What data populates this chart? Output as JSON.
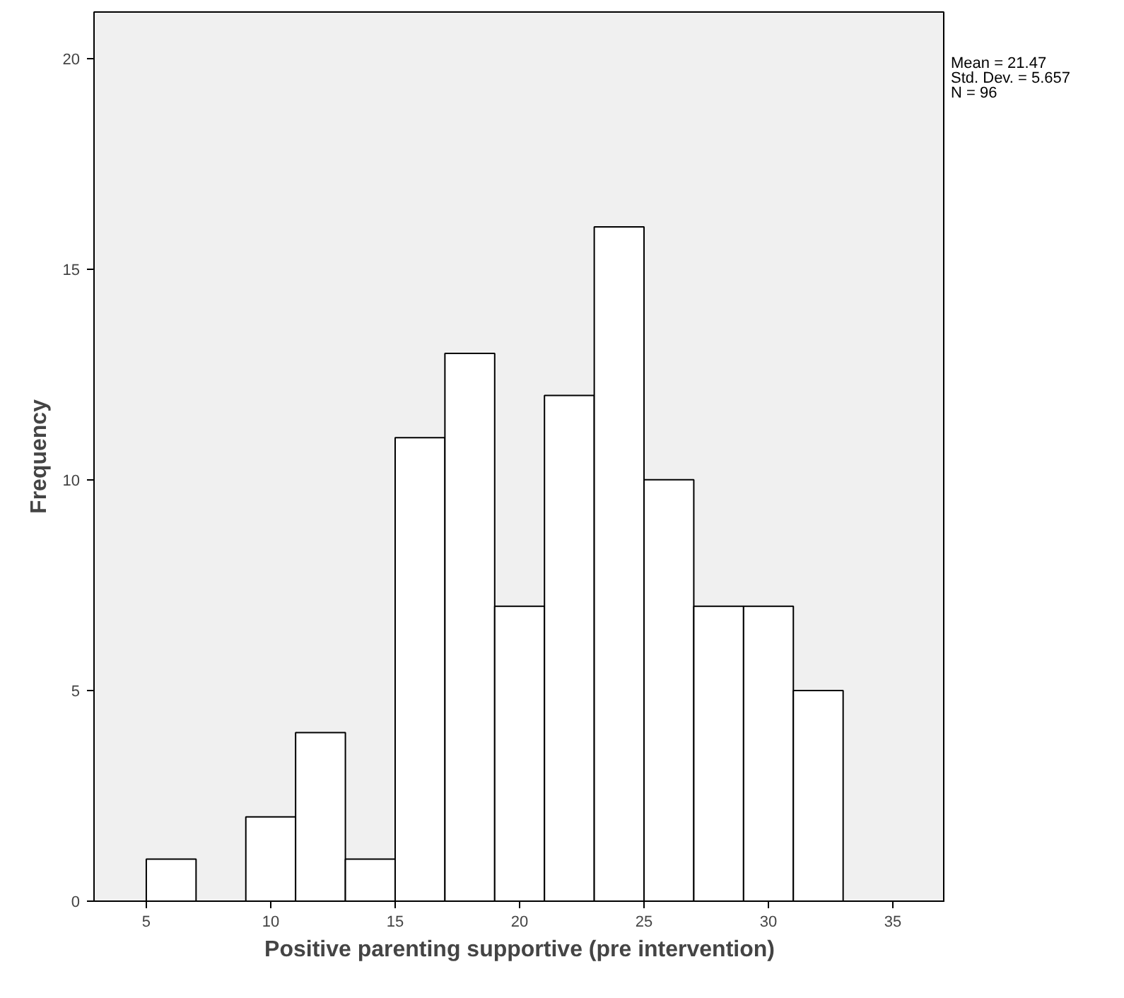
{
  "chart_data": {
    "type": "histogram",
    "xlabel": "Positive parenting supportive (pre intervention)",
    "ylabel": "Frequency",
    "bins": [
      5,
      7,
      9,
      11,
      13,
      15,
      17,
      19,
      21,
      23,
      25,
      27,
      29,
      31,
      33
    ],
    "values": [
      1,
      0,
      2,
      4,
      1,
      11,
      13,
      7,
      12,
      16,
      10,
      7,
      7,
      5
    ],
    "color": "#ffffff",
    "xlim": [
      2.9,
      37.1
    ],
    "xticks": [
      5,
      10,
      15,
      20,
      25,
      30,
      35
    ],
    "ylim": [
      0,
      21.1
    ],
    "yticks": [
      0,
      5,
      10,
      15,
      20
    ],
    "grid": false,
    "annotations": [
      "Mean = 21.47",
      "Std. Dev. = 5.657",
      "N = 96"
    ]
  }
}
